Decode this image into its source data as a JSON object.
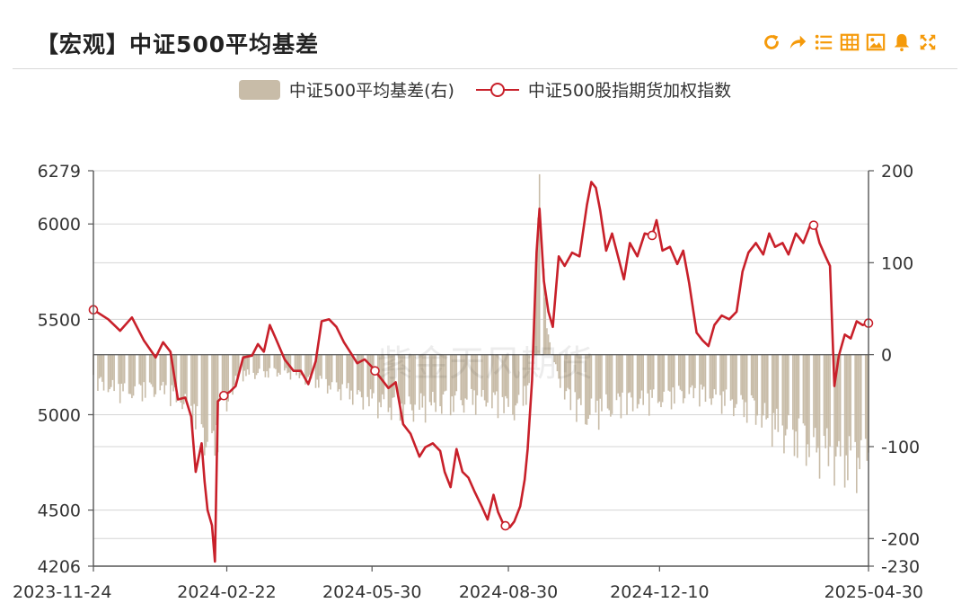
{
  "header": {
    "title": "【宏观】中证500平均基差",
    "accent_color": "#f59a0a",
    "tools": [
      "refresh-icon",
      "forward-icon",
      "list-icon",
      "table-icon",
      "image-icon",
      "bell-icon",
      "expand-icon"
    ]
  },
  "legend": {
    "bar_label": "中证500平均基差(右)",
    "line_label": "中证500股指期货加权指数"
  },
  "watermark": "紫金天风期货",
  "chart_data": {
    "type": "bar+line",
    "colors": {
      "line": "#c8202a",
      "bar": "#c8bca8",
      "grid": "#d5d5d5"
    },
    "x_range": [
      "2023-11-24",
      "2025-04-30"
    ],
    "x_tick_labels": [
      "2023-11-24",
      "2024-02-22",
      "2024-05-30",
      "2024-08-30",
      "2024-12-10",
      "2025-04-30"
    ],
    "left_axis": {
      "min": 4206,
      "max": 6279,
      "ticks": [
        4206,
        4500,
        5000,
        5500,
        6000,
        6279
      ]
    },
    "right_axis": {
      "min": -230,
      "max": 200,
      "ticks": [
        -230,
        -200,
        -100,
        0,
        100,
        200
      ]
    },
    "series": [
      {
        "name": "中证500股指期货加权指数",
        "axis": "left",
        "points": [
          [
            "2023-11-24",
            5550
          ],
          [
            "2023-12-04",
            5500
          ],
          [
            "2023-12-12",
            5440
          ],
          [
            "2023-12-20",
            5510
          ],
          [
            "2023-12-28",
            5390
          ],
          [
            "2024-01-05",
            5300
          ],
          [
            "2024-01-10",
            5380
          ],
          [
            "2024-01-15",
            5330
          ],
          [
            "2024-01-20",
            5080
          ],
          [
            "2024-01-25",
            5090
          ],
          [
            "2024-01-29",
            4990
          ],
          [
            "2024-02-01",
            4700
          ],
          [
            "2024-02-05",
            4850
          ],
          [
            "2024-02-07",
            4650
          ],
          [
            "2024-02-09",
            4500
          ],
          [
            "2024-02-12",
            4420
          ],
          [
            "2024-02-14",
            4230
          ],
          [
            "2024-02-16",
            5070
          ],
          [
            "2024-02-20",
            5100
          ],
          [
            "2024-02-24",
            5120
          ],
          [
            "2024-02-28",
            5150
          ],
          [
            "2024-03-04",
            5300
          ],
          [
            "2024-03-10",
            5310
          ],
          [
            "2024-03-14",
            5370
          ],
          [
            "2024-03-18",
            5330
          ],
          [
            "2024-03-22",
            5470
          ],
          [
            "2024-03-26",
            5400
          ],
          [
            "2024-04-01",
            5290
          ],
          [
            "2024-04-07",
            5230
          ],
          [
            "2024-04-12",
            5230
          ],
          [
            "2024-04-17",
            5160
          ],
          [
            "2024-04-22",
            5280
          ],
          [
            "2024-04-26",
            5490
          ],
          [
            "2024-05-01",
            5500
          ],
          [
            "2024-05-06",
            5460
          ],
          [
            "2024-05-11",
            5380
          ],
          [
            "2024-05-16",
            5320
          ],
          [
            "2024-05-20",
            5270
          ],
          [
            "2024-05-25",
            5290
          ],
          [
            "2024-05-30",
            5250
          ],
          [
            "2024-06-05",
            5190
          ],
          [
            "2024-06-10",
            5140
          ],
          [
            "2024-06-15",
            5170
          ],
          [
            "2024-06-20",
            4950
          ],
          [
            "2024-06-25",
            4900
          ],
          [
            "2024-07-01",
            4780
          ],
          [
            "2024-07-05",
            4830
          ],
          [
            "2024-07-10",
            4850
          ],
          [
            "2024-07-15",
            4810
          ],
          [
            "2024-07-18",
            4700
          ],
          [
            "2024-07-22",
            4620
          ],
          [
            "2024-07-26",
            4820
          ],
          [
            "2024-07-30",
            4700
          ],
          [
            "2024-08-03",
            4670
          ],
          [
            "2024-08-07",
            4600
          ],
          [
            "2024-08-12",
            4520
          ],
          [
            "2024-08-16",
            4450
          ],
          [
            "2024-08-20",
            4580
          ],
          [
            "2024-08-23",
            4490
          ],
          [
            "2024-08-27",
            4420
          ],
          [
            "2024-08-31",
            4410
          ],
          [
            "2024-09-03",
            4440
          ],
          [
            "2024-09-07",
            4520
          ],
          [
            "2024-09-10",
            4660
          ],
          [
            "2024-09-12",
            4820
          ],
          [
            "2024-09-15",
            5180
          ],
          [
            "2024-09-18",
            5850
          ],
          [
            "2024-09-20",
            6080
          ],
          [
            "2024-09-23",
            5700
          ],
          [
            "2024-09-26",
            5540
          ],
          [
            "2024-09-29",
            5460
          ],
          [
            "2024-10-03",
            5830
          ],
          [
            "2024-10-07",
            5780
          ],
          [
            "2024-10-12",
            5850
          ],
          [
            "2024-10-17",
            5830
          ],
          [
            "2024-10-22",
            6100
          ],
          [
            "2024-10-25",
            6220
          ],
          [
            "2024-10-28",
            6190
          ],
          [
            "2024-10-31",
            6070
          ],
          [
            "2024-11-04",
            5860
          ],
          [
            "2024-11-08",
            5950
          ],
          [
            "2024-11-12",
            5830
          ],
          [
            "2024-11-16",
            5710
          ],
          [
            "2024-11-20",
            5900
          ],
          [
            "2024-11-25",
            5830
          ],
          [
            "2024-11-30",
            5950
          ],
          [
            "2024-12-05",
            5940
          ],
          [
            "2024-12-08",
            6020
          ],
          [
            "2024-12-12",
            5860
          ],
          [
            "2024-12-17",
            5880
          ],
          [
            "2024-12-22",
            5790
          ],
          [
            "2024-12-26",
            5860
          ],
          [
            "2024-12-30",
            5690
          ],
          [
            "2025-01-04",
            5430
          ],
          [
            "2025-01-08",
            5390
          ],
          [
            "2025-01-12",
            5360
          ],
          [
            "2025-01-16",
            5470
          ],
          [
            "2025-01-21",
            5520
          ],
          [
            "2025-01-26",
            5500
          ],
          [
            "2025-01-31",
            5540
          ],
          [
            "2025-02-04",
            5750
          ],
          [
            "2025-02-08",
            5850
          ],
          [
            "2025-02-13",
            5900
          ],
          [
            "2025-02-18",
            5840
          ],
          [
            "2025-02-22",
            5950
          ],
          [
            "2025-02-26",
            5880
          ],
          [
            "2025-03-03",
            5900
          ],
          [
            "2025-03-07",
            5840
          ],
          [
            "2025-03-12",
            5950
          ],
          [
            "2025-03-17",
            5900
          ],
          [
            "2025-03-22",
            6000
          ],
          [
            "2025-03-25",
            5990
          ],
          [
            "2025-03-28",
            5900
          ],
          [
            "2025-04-01",
            5830
          ],
          [
            "2025-04-04",
            5780
          ],
          [
            "2025-04-07",
            5150
          ],
          [
            "2025-04-10",
            5310
          ],
          [
            "2025-04-14",
            5420
          ],
          [
            "2025-04-18",
            5400
          ],
          [
            "2025-04-22",
            5490
          ],
          [
            "2025-04-26",
            5470
          ],
          [
            "2025-04-30",
            5480
          ]
        ],
        "markers": [
          "2023-11-24",
          "2024-02-20",
          "2024-06-01",
          "2024-08-28",
          "2024-12-05",
          "2025-03-24",
          "2025-04-30"
        ]
      },
      {
        "name": "中证500平均基差(右)",
        "axis": "right",
        "type": "bar",
        "profile": [
          [
            "2023-11-24",
            -40
          ],
          [
            "2023-12-15",
            -55
          ],
          [
            "2024-01-10",
            -50
          ],
          [
            "2024-01-25",
            -70
          ],
          [
            "2024-02-05",
            -110
          ],
          [
            "2024-02-12",
            -140
          ],
          [
            "2024-02-20",
            -80
          ],
          [
            "2024-03-01",
            -30
          ],
          [
            "2024-04-01",
            -25
          ],
          [
            "2024-05-01",
            -45
          ],
          [
            "2024-06-01",
            -70
          ],
          [
            "2024-06-20",
            -80
          ],
          [
            "2024-07-20",
            -70
          ],
          [
            "2024-08-15",
            -65
          ],
          [
            "2024-09-05",
            -80
          ],
          [
            "2024-09-15",
            -40
          ],
          [
            "2024-09-20",
            200
          ],
          [
            "2024-09-25",
            30
          ],
          [
            "2024-10-05",
            -50
          ],
          [
            "2024-10-20",
            -90
          ],
          [
            "2024-11-01",
            -80
          ],
          [
            "2024-11-20",
            -70
          ],
          [
            "2024-12-10",
            -65
          ],
          [
            "2025-01-01",
            -55
          ],
          [
            "2025-01-20",
            -65
          ],
          [
            "2025-02-10",
            -80
          ],
          [
            "2025-03-01",
            -110
          ],
          [
            "2025-03-20",
            -130
          ],
          [
            "2025-04-07",
            -150
          ],
          [
            "2025-04-20",
            -160
          ],
          [
            "2025-04-30",
            -140
          ]
        ]
      }
    ]
  }
}
